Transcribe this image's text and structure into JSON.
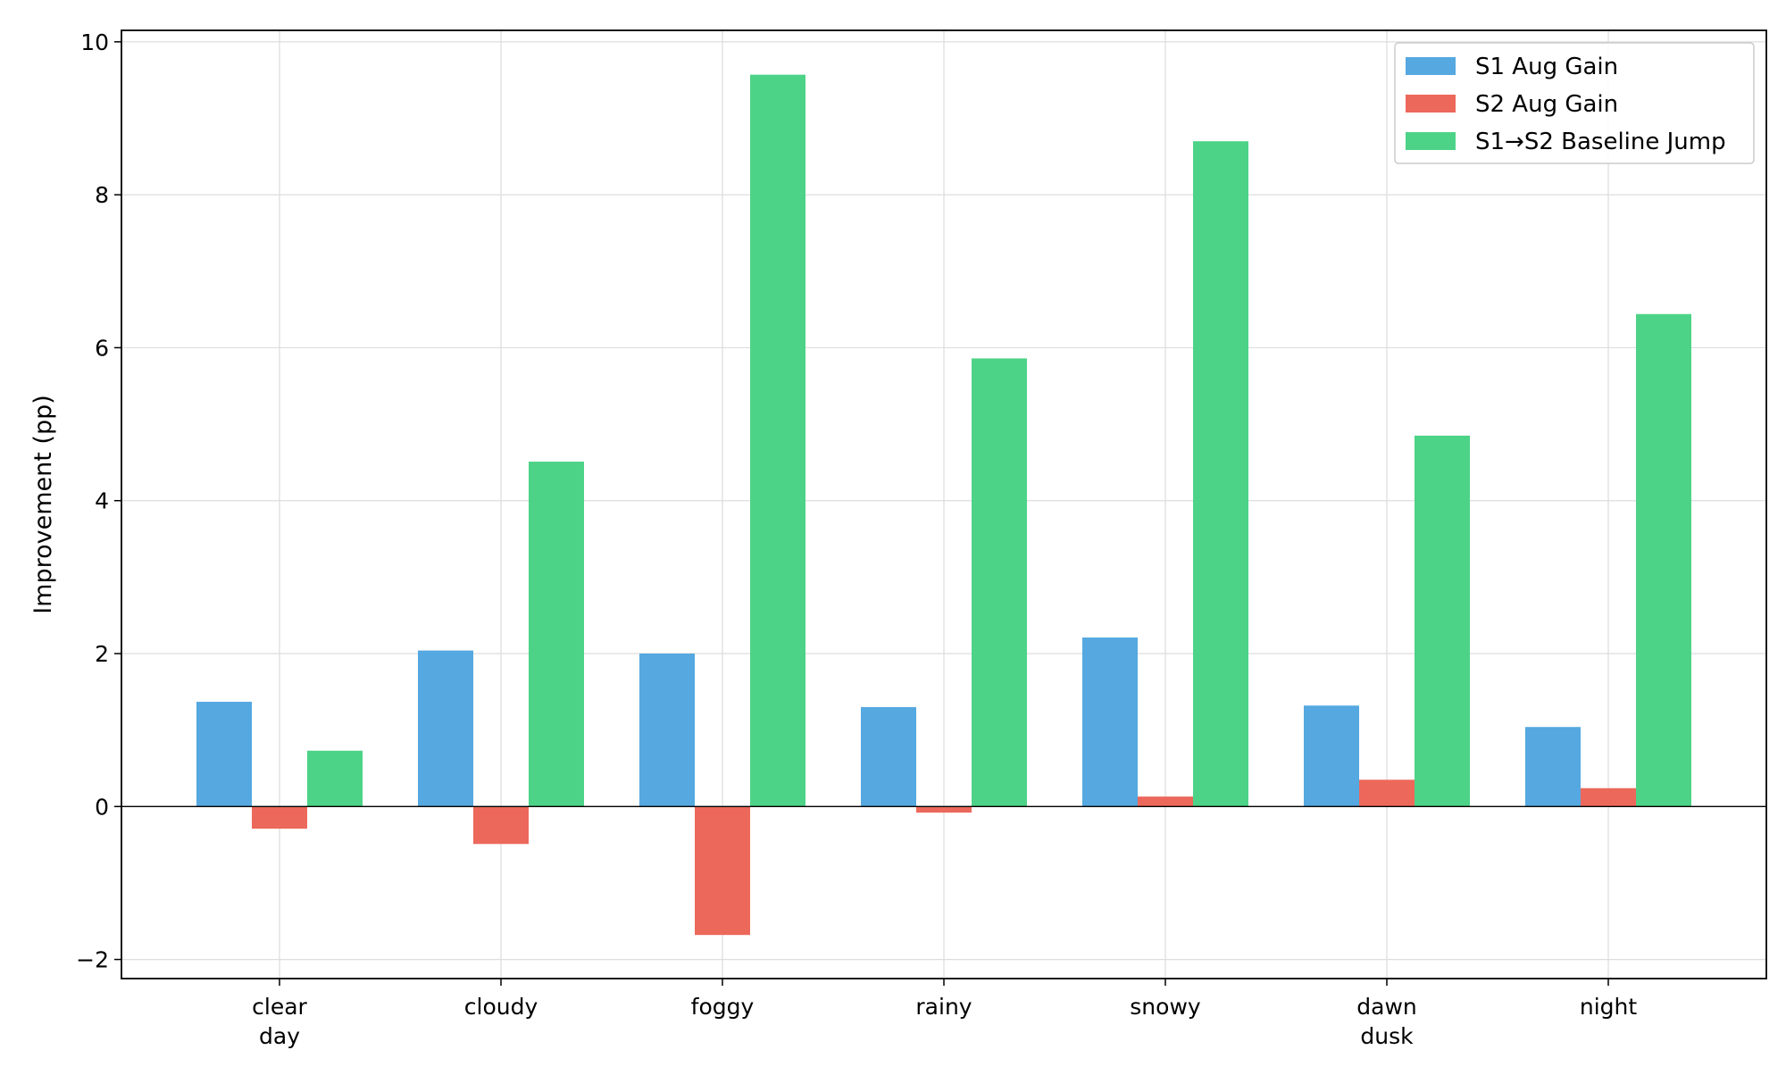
{
  "chart_data": {
    "type": "bar",
    "title": "",
    "xlabel": "",
    "ylabel": "Improvement (pp)",
    "ylim": [
      -2.25,
      10.15
    ],
    "yticks": [
      -2,
      0,
      2,
      4,
      6,
      8,
      10
    ],
    "ytick_labels": [
      "−2",
      "0",
      "2",
      "4",
      "6",
      "8",
      "10"
    ],
    "grid": true,
    "legend_placement": "top-right",
    "categories": [
      [
        "clear",
        "day"
      ],
      [
        "cloudy"
      ],
      [
        "foggy"
      ],
      [
        "rainy"
      ],
      [
        "snowy"
      ],
      [
        "dawn",
        "dusk"
      ],
      [
        "night"
      ]
    ],
    "series": [
      {
        "name": "S1 Aug Gain",
        "color": "#55a8e0",
        "values": [
          1.37,
          2.04,
          2.0,
          1.3,
          2.21,
          1.32,
          1.04
        ]
      },
      {
        "name": "S2 Aug Gain",
        "color": "#ec685b",
        "values": [
          -0.29,
          -0.49,
          -1.68,
          -0.08,
          0.13,
          0.35,
          0.24
        ]
      },
      {
        "name": "S1→S2 Baseline Jump",
        "color": "#4dd387",
        "values": [
          0.73,
          4.51,
          9.57,
          5.86,
          8.7,
          4.85,
          6.44
        ]
      }
    ]
  }
}
